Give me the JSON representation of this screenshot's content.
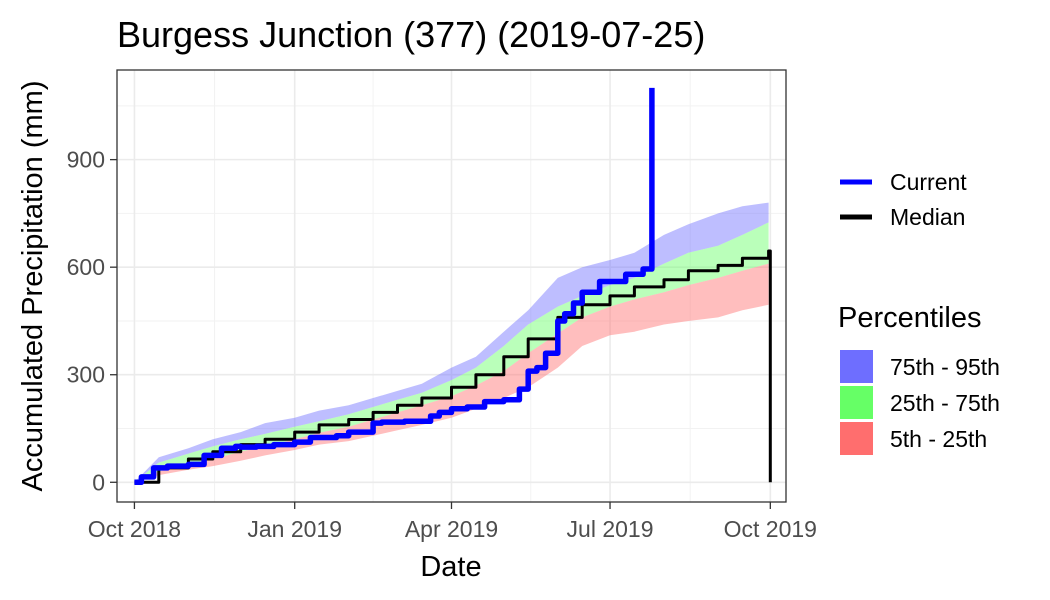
{
  "chart_data": {
    "type": "line",
    "title": "Burgess Junction (377) (2019-07-25)",
    "xlabel": "Date",
    "ylabel": "Accumulated Precipitation (mm)",
    "xlim": [
      "2018-09-21",
      "2019-10-10"
    ],
    "ylim": [
      -55,
      1150
    ],
    "x_ticks": [
      {
        "date": "2018-10-01",
        "label": "Oct 2018"
      },
      {
        "date": "2019-01-01",
        "label": "Jan 2019"
      },
      {
        "date": "2019-04-01",
        "label": "Apr 2019"
      },
      {
        "date": "2019-07-01",
        "label": "Jul 2019"
      },
      {
        "date": "2019-10-01",
        "label": "Oct 2019"
      }
    ],
    "y_ticks": [
      0,
      300,
      600,
      900
    ],
    "grid": true,
    "legend": {
      "placement": "right",
      "lines": [
        {
          "label": "Current",
          "color": "#0000ff"
        },
        {
          "label": "Median",
          "color": "#000000"
        }
      ],
      "percentiles_title": "Percentiles",
      "bands": [
        {
          "label": "75th - 95th",
          "color": "#6e6eff"
        },
        {
          "label": "25th - 75th",
          "color": "#66ff66"
        },
        {
          "label": "5th - 25th",
          "color": "#ff6e6e"
        }
      ]
    },
    "band_dates": [
      "2018-10-01",
      "2018-10-15",
      "2018-11-01",
      "2018-11-15",
      "2018-12-01",
      "2018-12-15",
      "2019-01-01",
      "2019-01-15",
      "2019-02-01",
      "2019-02-15",
      "2019-03-01",
      "2019-03-15",
      "2019-04-01",
      "2019-04-15",
      "2019-05-01",
      "2019-05-15",
      "2019-06-01",
      "2019-06-15",
      "2019-07-01",
      "2019-07-15",
      "2019-08-01",
      "2019-08-15",
      "2019-09-01",
      "2019-09-15",
      "2019-09-30"
    ],
    "p5": [
      0,
      20,
      35,
      45,
      60,
      75,
      90,
      105,
      115,
      130,
      145,
      160,
      180,
      205,
      235,
      265,
      320,
      380,
      410,
      420,
      440,
      450,
      460,
      480,
      495
    ],
    "p25": [
      0,
      30,
      50,
      65,
      85,
      100,
      120,
      138,
      155,
      175,
      195,
      215,
      240,
      270,
      310,
      360,
      415,
      460,
      490,
      510,
      530,
      550,
      570,
      590,
      610
    ],
    "p75": [
      0,
      55,
      80,
      100,
      120,
      135,
      155,
      170,
      190,
      210,
      230,
      250,
      285,
      320,
      380,
      440,
      490,
      520,
      550,
      570,
      610,
      640,
      660,
      690,
      725
    ],
    "p95": [
      0,
      70,
      95,
      120,
      140,
      165,
      180,
      200,
      215,
      235,
      255,
      275,
      320,
      350,
      420,
      480,
      570,
      600,
      620,
      640,
      690,
      720,
      750,
      770,
      780
    ],
    "series": [
      {
        "name": "Current",
        "color": "#0000ff",
        "x": [
          "2018-10-01",
          "2018-10-05",
          "2018-10-12",
          "2018-10-20",
          "2018-11-01",
          "2018-11-10",
          "2018-11-20",
          "2018-11-28",
          "2018-12-01",
          "2018-12-10",
          "2018-12-20",
          "2019-01-01",
          "2019-01-10",
          "2019-01-25",
          "2019-02-01",
          "2019-02-15",
          "2019-02-20",
          "2019-03-05",
          "2019-03-20",
          "2019-03-25",
          "2019-04-01",
          "2019-04-10",
          "2019-04-20",
          "2019-05-01",
          "2019-05-10",
          "2019-05-15",
          "2019-05-20",
          "2019-05-25",
          "2019-06-01",
          "2019-06-05",
          "2019-06-10",
          "2019-06-15",
          "2019-06-25",
          "2019-07-01",
          "2019-07-10",
          "2019-07-20",
          "2019-07-25"
        ],
        "y": [
          0,
          15,
          40,
          45,
          50,
          75,
          95,
          100,
          98,
          100,
          105,
          112,
          125,
          130,
          140,
          165,
          168,
          170,
          185,
          195,
          205,
          210,
          225,
          230,
          260,
          310,
          320,
          360,
          450,
          470,
          500,
          530,
          560,
          560,
          580,
          595,
          1100
        ]
      },
      {
        "name": "Median",
        "color": "#000000",
        "x": [
          "2018-10-01",
          "2018-10-15",
          "2018-11-01",
          "2018-11-15",
          "2018-12-01",
          "2018-12-15",
          "2019-01-01",
          "2019-01-15",
          "2019-02-01",
          "2019-02-15",
          "2019-03-01",
          "2019-03-15",
          "2019-04-01",
          "2019-04-15",
          "2019-05-01",
          "2019-05-15",
          "2019-06-01",
          "2019-06-15",
          "2019-07-01",
          "2019-07-15",
          "2019-08-01",
          "2019-08-15",
          "2019-09-01",
          "2019-09-15",
          "2019-09-30",
          "2019-10-01"
        ],
        "y": [
          0,
          40,
          65,
          85,
          105,
          120,
          140,
          160,
          175,
          195,
          215,
          235,
          265,
          300,
          350,
          400,
          460,
          495,
          520,
          545,
          565,
          590,
          605,
          625,
          645,
          0
        ]
      }
    ]
  }
}
